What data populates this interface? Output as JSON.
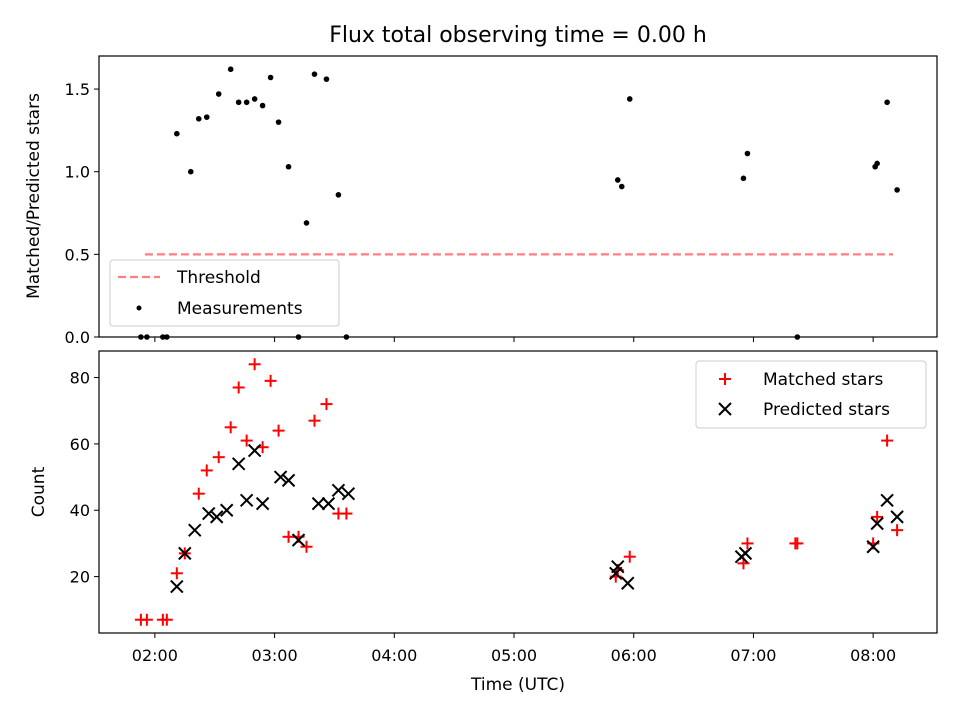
{
  "chart_data": [
    {
      "type": "scatter",
      "title": "Flux total observing time = 0.00 h",
      "xlabel": "",
      "ylabel": "Matched/Predicted stars",
      "xlim": [
        "01:32",
        "08:32"
      ],
      "ylim": [
        0,
        1.7
      ],
      "yticks": [
        0.0,
        0.5,
        1.0,
        1.5
      ],
      "ytick_labels": [
        "0.0",
        "0.5",
        "1.0",
        "1.5"
      ],
      "legend": {
        "placement": "lower-left",
        "entries": [
          "Threshold",
          "Measurements"
        ]
      },
      "colors": {
        "threshold": "#ff7f7f",
        "measurements": "#000000"
      },
      "series": [
        {
          "name": "Threshold",
          "style": "dashed-line",
          "x": [
            "01:55",
            "08:10"
          ],
          "y": [
            0.5,
            0.5
          ]
        },
        {
          "name": "Measurements",
          "style": "dot",
          "x": [
            "01:53",
            "01:56",
            "02:04",
            "02:06",
            "02:11",
            "02:18",
            "02:22",
            "02:26",
            "02:32",
            "02:38",
            "02:42",
            "02:46",
            "02:50",
            "02:54",
            "02:58",
            "03:02",
            "03:07",
            "03:12",
            "03:16",
            "03:20",
            "03:26",
            "03:32",
            "03:36",
            "05:52",
            "05:54",
            "05:58",
            "06:55",
            "06:57",
            "07:22",
            "08:01",
            "08:02",
            "08:07",
            "08:12"
          ],
          "y": [
            0.0,
            0.0,
            0.0,
            0.0,
            1.23,
            1.0,
            1.32,
            1.33,
            1.47,
            1.62,
            1.42,
            1.42,
            1.44,
            1.4,
            1.57,
            1.3,
            1.03,
            0.0,
            0.69,
            1.59,
            1.56,
            0.86,
            0.0,
            0.95,
            0.91,
            1.44,
            0.96,
            1.11,
            0.0,
            1.03,
            1.05,
            1.42,
            0.89
          ]
        }
      ]
    },
    {
      "type": "scatter",
      "title": "",
      "xlabel": "Time (UTC)",
      "ylabel": "Count",
      "xlim": [
        "01:32",
        "08:32"
      ],
      "xticks": [
        "02:00",
        "03:00",
        "04:00",
        "05:00",
        "06:00",
        "07:00",
        "08:00"
      ],
      "ylim": [
        3,
        88
      ],
      "yticks": [
        20,
        40,
        60,
        80
      ],
      "legend": {
        "placement": "top-right",
        "entries": [
          "Matched stars",
          "Predicted stars"
        ]
      },
      "colors": {
        "matched": "#ff0000",
        "predicted": "#000000"
      },
      "series": [
        {
          "name": "Matched stars",
          "marker": "plus",
          "x": [
            "01:53",
            "01:56",
            "02:04",
            "02:06",
            "02:11",
            "02:15",
            "02:22",
            "02:26",
            "02:32",
            "02:38",
            "02:42",
            "02:46",
            "02:50",
            "02:54",
            "02:58",
            "03:02",
            "03:07",
            "03:12",
            "03:16",
            "03:20",
            "03:26",
            "03:32",
            "03:36",
            "05:51",
            "05:52",
            "05:58",
            "06:55",
            "06:57",
            "07:21",
            "07:22",
            "08:00",
            "08:02",
            "08:07",
            "08:12"
          ],
          "y": [
            7,
            7,
            7,
            7,
            21,
            27,
            45,
            52,
            56,
            65,
            77,
            61,
            84,
            59,
            79,
            64,
            32,
            32,
            29,
            67,
            72,
            39,
            39,
            20,
            22,
            26,
            24,
            30,
            30,
            30,
            30,
            38,
            61,
            34
          ]
        },
        {
          "name": "Predicted stars",
          "marker": "x",
          "x": [
            "02:11",
            "02:15",
            "02:20",
            "02:27",
            "02:31",
            "02:36",
            "02:42",
            "02:46",
            "02:50",
            "02:54",
            "03:03",
            "03:07",
            "03:12",
            "03:22",
            "03:27",
            "03:32",
            "03:37",
            "05:51",
            "05:52",
            "05:57",
            "06:54",
            "06:56",
            "08:00",
            "08:02",
            "08:07",
            "08:12"
          ],
          "y": [
            17,
            27,
            34,
            39,
            38,
            40,
            54,
            43,
            58,
            42,
            50,
            49,
            31,
            42,
            42,
            46,
            45,
            21,
            23,
            18,
            26,
            27,
            29,
            36,
            43,
            38
          ]
        }
      ]
    }
  ]
}
